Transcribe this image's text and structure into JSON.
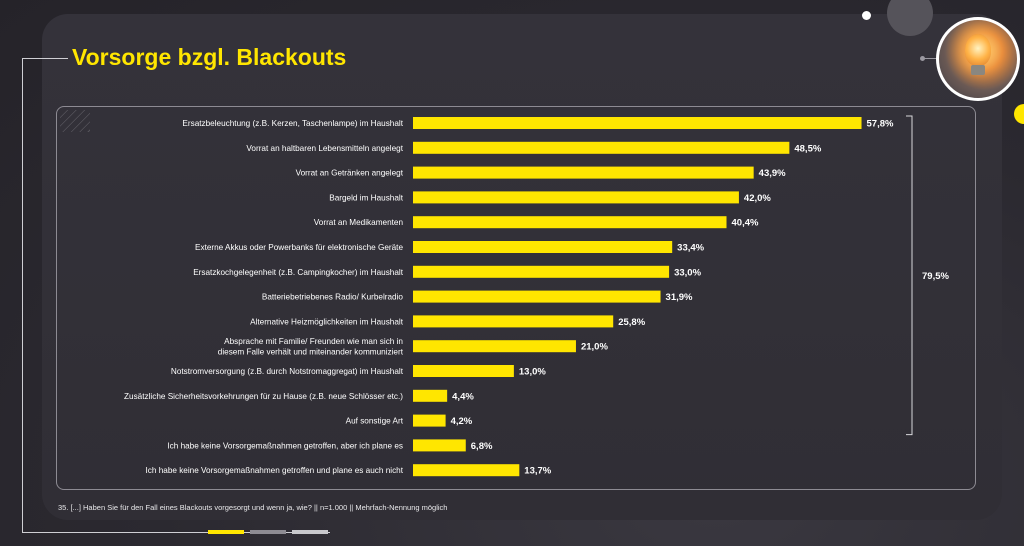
{
  "title": "Vorsorge bzgl. Blackouts",
  "footnote": "35. [...] Haben Sie für den Fall eines Blackouts vorgesorgt und wenn ja, wie?  || n=1.000 || Mehrfach-Nennung möglich",
  "colors": {
    "accent": "#ffe600",
    "background": "#2b2930",
    "text": "#ffffff"
  },
  "chart_data": {
    "type": "bar",
    "orientation": "horizontal",
    "title": "",
    "xlabel": "",
    "ylabel": "",
    "xlim": [
      0,
      60
    ],
    "grid": false,
    "legend": "none",
    "value_suffix": "%",
    "categories": [
      "Ersatzbeleuchtung (z.B. Kerzen, Taschenlampe) im Haushalt",
      "Vorrat an haltbaren Lebensmitteln angelegt",
      "Vorrat an Getränken angelegt",
      "Bargeld im Haushalt",
      "Vorrat an Medikamenten",
      "Externe Akkus oder Powerbanks für elektronische Geräte",
      "Ersatzkochgelegenheit (z.B. Campingkocher) im Haushalt",
      "Batteriebetriebenes Radio/ Kurbelradio",
      "Alternative Heizmöglichkeiten im Haushalt",
      "Absprache mit Familie/ Freunden wie man sich in diesem Falle verhält und miteinander kommuniziert",
      "Notstromversorgung (z.B. durch Notstromaggregat) im Haushalt",
      "Zusätzliche Sicherheitsvorkehrungen für zu Hause (z.B. neue Schlösser etc.)",
      "Auf sonstige Art",
      "Ich habe keine Vorsorgemaßnahmen getroffen, aber ich plane es",
      "Ich habe keine Vorsorgemaßnahmen getroffen und plane es auch nicht"
    ],
    "category_lines": [
      [
        "Ersatzbeleuchtung (z.B. Kerzen, Taschenlampe) im Haushalt"
      ],
      [
        "Vorrat an haltbaren Lebensmitteln angelegt"
      ],
      [
        "Vorrat an Getränken angelegt"
      ],
      [
        "Bargeld im Haushalt"
      ],
      [
        "Vorrat an Medikamenten"
      ],
      [
        "Externe Akkus oder Powerbanks für elektronische Geräte"
      ],
      [
        "Ersatzkochgelegenheit (z.B. Campingkocher) im Haushalt"
      ],
      [
        "Batteriebetriebenes Radio/ Kurbelradio"
      ],
      [
        "Alternative Heizmöglichkeiten im Haushalt"
      ],
      [
        "Absprache mit Familie/ Freunden wie man sich in",
        "diesem Falle verhält und miteinander kommuniziert"
      ],
      [
        "Notstromversorgung (z.B. durch Notstromaggregat) im Haushalt"
      ],
      [
        "Zusätzliche Sicherheitsvorkehrungen für zu Hause (z.B. neue Schlösser etc.)"
      ],
      [
        "Auf sonstige Art"
      ],
      [
        "Ich habe keine Vorsorgemaßnahmen getroffen, aber ich plane es"
      ],
      [
        "Ich habe keine Vorsorgemaßnahmen getroffen und plane es auch nicht"
      ]
    ],
    "values": [
      57.8,
      48.5,
      43.9,
      42.0,
      40.4,
      33.4,
      33.0,
      31.9,
      25.8,
      21.0,
      13.0,
      4.4,
      4.2,
      6.8,
      13.7
    ],
    "value_labels": [
      "57,8%",
      "48,5%",
      "43,9%",
      "42,0%",
      "40,4%",
      "33,4%",
      "33,0%",
      "31,9%",
      "25,8%",
      "21,0%",
      "13,0%",
      "4,4%",
      "4,2%",
      "6,8%",
      "13,7%"
    ],
    "bar_color": "#ffe600",
    "bracket": {
      "label": "79,5%",
      "value": 79.5,
      "from_category": 0,
      "to_category": 12
    }
  }
}
